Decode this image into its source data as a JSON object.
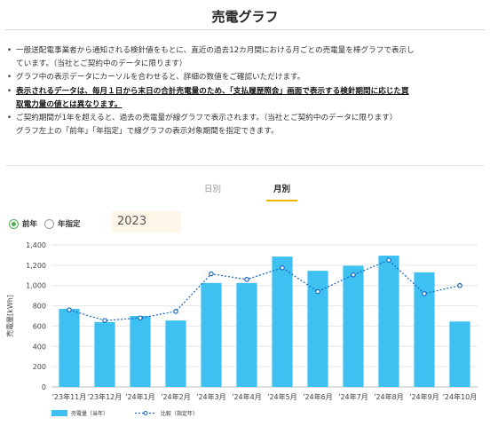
{
  "title": "売電グラフ",
  "notes": {
    "n1a": "一般送配電事業者から通知される検針値をもとに、直近の過去12カ月間における月ごとの売電量を棒グラフで表示し",
    "n1b": "ています。（当社とご契約中のデータに限ります）",
    "n2": "グラフ中の表示データにカーソルを合わせると、詳細の数値をご確認いただけます。",
    "n3a": "表示されるデータは、毎月１日から末日の合計売電量のため、「支払履歴照会」画面で表示する検針期間に応じた買",
    "n3b": "取電力量の値とは異なります。",
    "n4a": "ご契約期間が1年を超えると、過去の売電量が線グラフで表示されます。（当社とご契約中のデータに限ります）",
    "n4b": "グラフ左上の「前年」「年指定」で線グラフの表示対象期間を指定できます。"
  },
  "tabs": {
    "day": "日別",
    "month": "月別"
  },
  "radios": {
    "prev_year": "前年",
    "year_select": "年指定"
  },
  "year_value": "2023",
  "colors": {
    "bar": "#3ec1f0",
    "line": "#1565c0",
    "active_tab": "#f0b400",
    "radio": "#4caf50"
  },
  "chart_data": {
    "type": "bar",
    "ylabel": "売電量[kWh]",
    "ylim": [
      0,
      1400
    ],
    "yticks": [
      "0",
      "200",
      "400",
      "600",
      "800",
      "1,000",
      "1,200",
      "1,400"
    ],
    "categories": [
      "'23年11月",
      "'23年12月",
      "'24年1月",
      "'24年2月",
      "'24年3月",
      "'24年4月",
      "'24年5月",
      "'24年6月",
      "'24年7月",
      "'24年8月",
      "'24年9月",
      "'24年10月"
    ],
    "grid": true,
    "series": [
      {
        "name": "売電量（当年）",
        "type": "bar",
        "values": [
          770,
          640,
          700,
          655,
          1025,
          1025,
          1285,
          1145,
          1195,
          1295,
          1130,
          645
        ]
      },
      {
        "name": "比較（指定年）",
        "type": "line",
        "values": [
          760,
          655,
          680,
          745,
          1115,
          1060,
          1175,
          940,
          1105,
          1250,
          920,
          1000
        ]
      }
    ],
    "legend": "bottom-left"
  }
}
